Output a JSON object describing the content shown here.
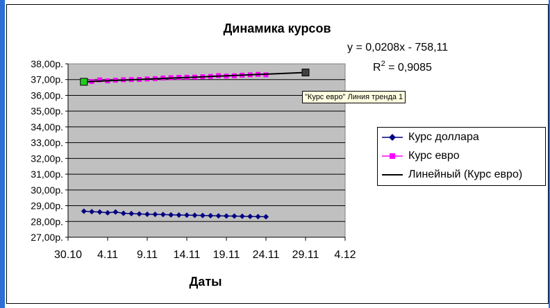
{
  "chart_data": {
    "type": "line",
    "title": "Динамика курсов",
    "xlabel": "Даты",
    "ylabel": "",
    "x_ticks": [
      "30.10",
      "4.11",
      "9.11",
      "14.11",
      "19.11",
      "24.11",
      "29.11",
      "4.12"
    ],
    "x_tick_days": [
      0,
      5,
      10,
      15,
      20,
      25,
      30,
      35
    ],
    "xlim_days": [
      0,
      35
    ],
    "y_ticks": [
      "27,00р.",
      "28,00р.",
      "29,00р.",
      "30,00р.",
      "31,00р.",
      "32,00р.",
      "33,00р.",
      "34,00р.",
      "35,00р.",
      "36,00р.",
      "37,00р.",
      "38,00р."
    ],
    "ylim": [
      27,
      38
    ],
    "grid": true,
    "legend_position": "right",
    "series": [
      {
        "name": "Курс доллара",
        "color": "#000080",
        "marker": "diamond",
        "x_days": [
          2,
          3,
          4,
          5,
          6,
          7,
          8,
          9,
          10,
          11,
          12,
          13,
          14,
          15,
          16,
          17,
          18,
          19,
          20,
          21,
          22,
          23,
          24,
          25
        ],
        "values": [
          28.65,
          28.62,
          28.6,
          28.55,
          28.6,
          28.52,
          28.5,
          28.48,
          28.46,
          28.45,
          28.44,
          28.42,
          28.41,
          28.4,
          28.39,
          28.38,
          28.37,
          28.36,
          28.35,
          28.34,
          28.33,
          28.32,
          28.31,
          28.3
        ]
      },
      {
        "name": "Курс евро",
        "color": "#ff00ff",
        "marker": "square",
        "x_days": [
          2,
          3,
          4,
          5,
          6,
          7,
          8,
          9,
          10,
          11,
          12,
          13,
          14,
          15,
          16,
          17,
          18,
          19,
          20,
          21,
          22,
          23,
          24,
          25
        ],
        "values": [
          36.78,
          36.88,
          36.98,
          36.92,
          36.96,
          36.99,
          37.0,
          37.01,
          37.04,
          37.06,
          37.1,
          37.12,
          37.14,
          37.15,
          37.16,
          37.18,
          37.2,
          37.25,
          37.22,
          37.24,
          37.28,
          37.3,
          37.33,
          37.3
        ]
      },
      {
        "name": "Линейный (Курс евро)",
        "color": "#000000",
        "type": "trendline",
        "x_days": [
          2,
          30
        ],
        "values": [
          36.86,
          37.45
        ]
      }
    ],
    "annotations": {
      "equation": "y = 0,0208x - 758,11",
      "r2_prefix": "R",
      "r2_sup": "2",
      "r2_value": " = 0,9085",
      "tooltip": "\"Курс евро\" Линия тренда 1"
    }
  }
}
